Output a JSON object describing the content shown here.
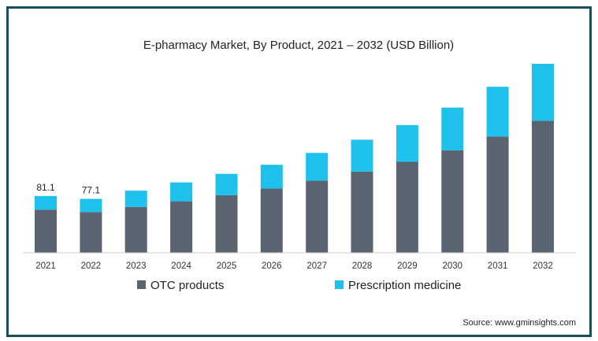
{
  "chart_data": {
    "type": "bar",
    "stacked": true,
    "title": "E-pharmacy Market, By Product, 2021 – 2032 (USD Billion)",
    "xlabel": "",
    "ylabel": "",
    "categories": [
      "2021",
      "2022",
      "2023",
      "2024",
      "2025",
      "2026",
      "2027",
      "2028",
      "2029",
      "2030",
      "2031",
      "2032"
    ],
    "series": [
      {
        "name": "OTC products",
        "color": "#5a6470",
        "values": [
          61.6,
          58.3,
          65.6,
          73.6,
          82.2,
          91.8,
          103.2,
          116.0,
          130.0,
          146.5,
          166.2,
          188.5
        ]
      },
      {
        "name": "Prescription medicine",
        "color": "#1ec0ec",
        "values": [
          19.5,
          18.8,
          23.2,
          27.0,
          30.5,
          34.0,
          39.5,
          45.5,
          52.5,
          61.0,
          71.0,
          81.5
        ]
      }
    ],
    "data_labels": [
      {
        "category": "2021",
        "text": "81.1"
      },
      {
        "category": "2022",
        "text": "77.1"
      }
    ],
    "ylim": [
      0,
      270
    ],
    "grid": false,
    "legend_position": "bottom"
  },
  "source": "Source: www.gminsights.com"
}
